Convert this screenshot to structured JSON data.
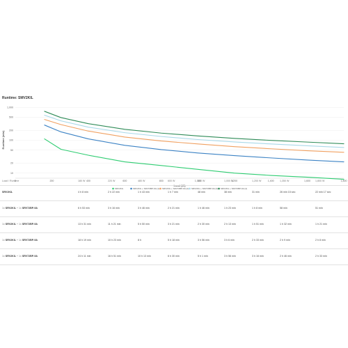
{
  "chart_title": "Runtime: SMV2KIL",
  "chart_data": {
    "type": "line",
    "title": "Runtime: SMV2KIL",
    "xlabel": "Load (W)",
    "ylabel": "Runtime (min)",
    "xlim": [
      0,
      1800
    ],
    "x_ticks": [
      "0",
      "200",
      "400",
      "600",
      "800",
      "1,000",
      "1,200",
      "1,400",
      "1,600",
      "1,800"
    ],
    "y_ticks": [
      "1,000",
      "500",
      "200",
      "100",
      "50",
      "20",
      "10"
    ],
    "y_scale": "log",
    "grid": "horizontal",
    "legend_position": "bottom",
    "series": [
      {
        "name": "SRV2KIL",
        "color": "#2ecc71",
        "x": [
          160,
          250,
          400,
          600,
          800,
          1000,
          1200,
          1400,
          1600,
          1800
        ],
        "y": [
          110,
          53,
          35,
          22,
          17,
          13,
          10,
          8.5,
          7.5,
          6.5
        ]
      },
      {
        "name": "SRV2KIL + SRV72BP-9A (1)",
        "color": "#3b82c4",
        "x": [
          160,
          250,
          400,
          600,
          800,
          1000,
          1200,
          1400,
          1600,
          1800
        ],
        "y": [
          290,
          180,
          110,
          70,
          52,
          41,
          34,
          29,
          25,
          22
        ]
      },
      {
        "name": "SRV2KIL + SRV72BP-9A (2)",
        "color": "#f0a060",
        "x": [
          160,
          250,
          400,
          600,
          800,
          1000,
          1200,
          1400,
          1600,
          1800
        ],
        "y": [
          430,
          300,
          190,
          125,
          95,
          77,
          64,
          55,
          48,
          43
        ]
      },
      {
        "name": "SRV2KIL + SRV72BP-9A (3)",
        "color": "#a8d8e8",
        "x": [
          160,
          250,
          400,
          600,
          800,
          1000,
          1200,
          1400,
          1600,
          1800
        ],
        "y": [
          580,
          390,
          250,
          170,
          130,
          105,
          89,
          77,
          68,
          60
        ]
      },
      {
        "name": "SRV2KIL + SRV72BP-9A (4)",
        "color": "#2e8b57",
        "x": [
          160,
          250,
          400,
          600,
          800,
          1000,
          1200,
          1400,
          1600,
          1800
        ],
        "y": [
          760,
          490,
          320,
          215,
          165,
          135,
          114,
          99,
          88,
          78
        ]
      }
    ]
  },
  "table": {
    "headers": [
      "Load / Runtime",
      "180 W",
      "220 W",
      "480 W",
      "600 W",
      "800 W",
      "1,000 W",
      "1,200 W",
      "1,350 W",
      "1,800 W"
    ],
    "rows": [
      {
        "model": "SRV2KIL",
        "addon": "",
        "cells": [
          "4 h 8 min",
          "2 h 22 min",
          "1 h 43 min",
          "1 h 7 min",
          "48 min",
          "38 min",
          "31 min",
          "26 min 15 sec",
          "22 min 17 sec"
        ]
      },
      {
        "model": "SRV2KIL",
        "addon": "SRV72BP-9A",
        "cells": [
          "6 h 53 min",
          "3 h 16 min",
          "3 h 46 min",
          "2 h 21 min",
          "1 h 46 min",
          "1 h 23 min",
          "1 h 8 min",
          "58 min",
          "51 min"
        ]
      },
      {
        "model": "SRV2KIL",
        "addon": "SRV72BP-9A",
        "cells": [
          "13 h 31 min",
          "11 h 21 min",
          "5 h 50 min",
          "3 h 21 min",
          "2 h 30 min",
          "2 h 13 min",
          "1 h 51 min",
          "1 h 32 min",
          "1 h 21 min"
        ]
      },
      {
        "model": "SRV2KIL",
        "addon": "SRV72BP-9A",
        "cells": [
          "18 h 19 min",
          "10 h 23 min",
          "8 h",
          "5 h 18 min",
          "3 h 56 min",
          "3 h 6 min",
          "2 h 33 min",
          "2 h 9 min",
          "2 h 8 min"
        ]
      },
      {
        "model": "SRV2KIL",
        "addon": "SRV72BP-9A",
        "cells": [
          "24 h 11 min",
          "16 h 51 min",
          "10 h 13 min",
          "6 h 30 min",
          "5 h 1 min",
          "3 h 56 min",
          "3 h 16 min",
          "2 h 46 min",
          "2 h 33 min"
        ]
      }
    ]
  }
}
